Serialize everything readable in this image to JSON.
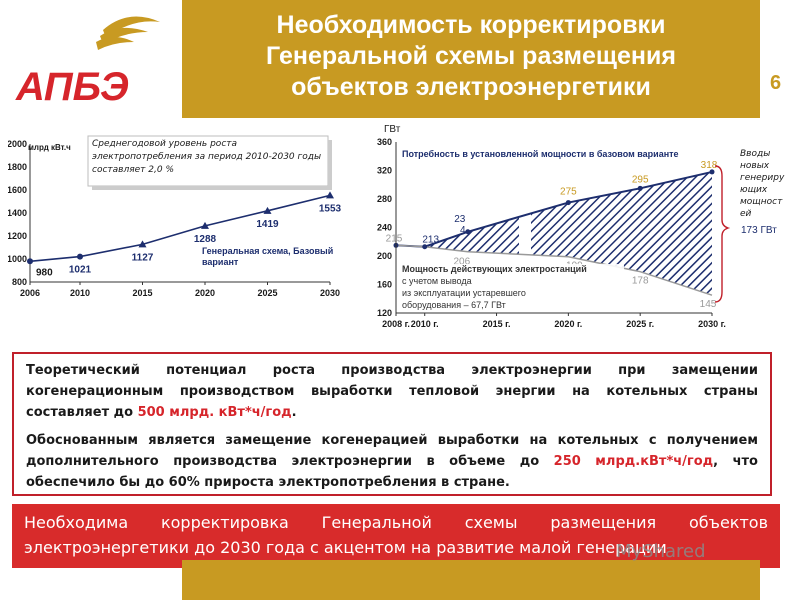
{
  "header": {
    "title_line1": "Необходимость корректировки",
    "title_line2": "Генеральной схемы размещения",
    "title_line3": "объектов электроэнергетики",
    "page_number": "6",
    "logo_text": "АПБЭ"
  },
  "chart_left": {
    "chart_data": {
      "type": "line",
      "ylabel": "млрд кВт.ч",
      "x": [
        2006,
        2010,
        2015,
        2020,
        2025,
        2030
      ],
      "values": [
        980,
        1021,
        1127,
        1288,
        1419,
        1553
      ],
      "ylim": [
        800,
        2000
      ],
      "yticks": [
        "2000",
        "1800",
        "1600",
        "1400",
        "1200",
        "1000",
        "800"
      ],
      "xticks": [
        "2006",
        "2010",
        "2015",
        "2020",
        "2025",
        "2030"
      ],
      "point_labels": [
        "980",
        "1021",
        "1127",
        "1288",
        "1419",
        "1553"
      ],
      "series_name": "Генеральная схема, Базовый вариант"
    },
    "note": "Среднегодовой уровень роста электропотребления за период 2010-2030 годы составляет 2,0 %"
  },
  "chart_right": {
    "chart_data": {
      "type": "area",
      "ylabel": "ГВт",
      "ylim": [
        120,
        360
      ],
      "yticks": [
        "360",
        "320",
        "280",
        "240",
        "200",
        "160",
        "120"
      ],
      "xticks": [
        "2008 г.",
        "2010 г.",
        "2015 г.",
        "2020 г.",
        "2025 г.",
        "2030 г."
      ],
      "series": [
        {
          "name": "Потребность в установленной мощности в базовом варианте",
          "x": [
            2008,
            2010,
            2013,
            2020,
            2025,
            2030
          ],
          "values": [
            215,
            213,
            234,
            275,
            295,
            318
          ]
        },
        {
          "name": "Мощность действующих электростанций с учетом вывода из эксплуатации устаревшего оборудования",
          "x": [
            2008,
            2010,
            2013,
            2020,
            2025,
            2030
          ],
          "values": [
            215,
            213,
            206,
            199,
            178,
            145
          ]
        }
      ],
      "upper_labels": [
        "215",
        "213",
        "23",
        "4",
        "275",
        "295",
        "318"
      ],
      "lower_labels": [
        "206",
        "199",
        "178",
        "145"
      ],
      "bracket_label": "173 ГВт",
      "side_note": "Вводы новых генериру ющих мощност ей"
    },
    "lower_note_line1": "Мощность действующих электростанций",
    "lower_note_line2": "с учетом вывода",
    "lower_note_line3": "из эксплуатации устаревшего",
    "lower_note_line4": "оборудования – 67,7 ГВт",
    "top_note": "Потребность в установленной мощности в базовом варианте"
  },
  "textbox": {
    "p1_a": "Теоретический потенциал роста производства электроэнергии при замещении когенерационным производством выработки тепловой энергии на котельных страны составляет до ",
    "p1_red": "500 млрд. кВт*ч/год",
    "p1_b": ".",
    "p2_a": "Обоснованным является замещение когенерацией выработки на котельных с получением дополнительного производства электроэнергии в объеме до ",
    "p2_red": "250 млрд.кВт*ч/год",
    "p2_b": ", что обеспечило бы до 60% прироста электропотребления в стране."
  },
  "redbar": {
    "text": "Необходима корректировка Генеральной схемы размещения объектов электроэнергетики до 2030 года с акцентом на развитие малой генерации"
  },
  "watermark": "MyShared",
  "colors": {
    "gold": "#c89a22",
    "red": "#d82b2b",
    "navy": "#1d2e6e"
  }
}
